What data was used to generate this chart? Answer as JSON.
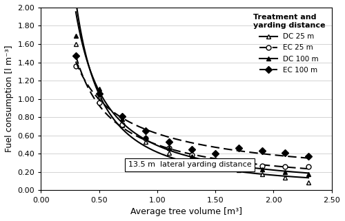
{
  "title": "",
  "xlabel": "Average tree volume [m³]",
  "ylabel": "Fuel consumption [l m⁻³]",
  "xlim": [
    0.0,
    2.5
  ],
  "ylim": [
    0.0,
    2.0
  ],
  "xticks": [
    0.0,
    0.5,
    1.0,
    1.5,
    2.0,
    2.5
  ],
  "yticks": [
    0.0,
    0.2,
    0.4,
    0.6,
    0.8,
    1.0,
    1.2,
    1.4,
    1.6,
    1.8,
    2.0
  ],
  "annotation": "13.5 m  lateral yarding distance",
  "legend_title": "Treatment and\nyarding distance",
  "series": [
    {
      "label": "DC 25 m",
      "linestyle": "-",
      "marker": "^",
      "markerfacecolor": "white",
      "color": "black",
      "linewidth": 1.5,
      "x": [
        0.3,
        0.4,
        0.5,
        0.6,
        0.7,
        0.8,
        0.9,
        1.0,
        1.1,
        1.2,
        1.3,
        1.4,
        1.5,
        1.6,
        1.7,
        1.8,
        1.9,
        2.0,
        2.1,
        2.2,
        2.3
      ],
      "y": [
        1.6,
        1.28,
        1.03,
        0.85,
        0.71,
        0.61,
        0.53,
        0.46,
        0.41,
        0.37,
        0.33,
        0.3,
        0.27,
        0.24,
        0.22,
        0.2,
        0.18,
        0.16,
        0.14,
        0.12,
        0.09
      ]
    },
    {
      "label": "EC 25 m",
      "linestyle": "--",
      "dashes": [
        6,
        3
      ],
      "marker": "o",
      "markerfacecolor": "white",
      "color": "black",
      "linewidth": 1.5,
      "x": [
        0.3,
        0.4,
        0.5,
        0.6,
        0.7,
        0.8,
        0.9,
        1.0,
        1.1,
        1.2,
        1.3,
        1.4,
        1.5,
        1.6,
        1.7,
        1.8,
        1.9,
        2.0,
        2.1,
        2.2,
        2.3
      ],
      "y": [
        1.36,
        1.13,
        0.96,
        0.83,
        0.72,
        0.64,
        0.57,
        0.51,
        0.46,
        0.42,
        0.39,
        0.36,
        0.33,
        0.31,
        0.29,
        0.28,
        0.27,
        0.26,
        0.26,
        0.26,
        0.26
      ]
    },
    {
      "label": "DC 100 m",
      "linestyle": "-",
      "marker": "^",
      "markerfacecolor": "black",
      "color": "black",
      "linewidth": 1.5,
      "x": [
        0.3,
        0.4,
        0.5,
        0.6,
        0.7,
        0.8,
        0.9,
        1.0,
        1.1,
        1.2,
        1.3,
        1.4,
        1.5,
        1.6,
        1.7,
        1.8,
        1.9,
        2.0,
        2.1,
        2.2,
        2.3
      ],
      "y": [
        1.69,
        1.36,
        1.11,
        0.92,
        0.78,
        0.67,
        0.58,
        0.51,
        0.46,
        0.41,
        0.37,
        0.34,
        0.31,
        0.29,
        0.27,
        0.25,
        0.23,
        0.21,
        0.2,
        0.19,
        0.18
      ]
    },
    {
      "label": "EC 100 m",
      "linestyle": "--",
      "dashes": [
        6,
        3
      ],
      "marker": "D",
      "markerfacecolor": "black",
      "color": "black",
      "linewidth": 1.5,
      "x": [
        0.3,
        0.4,
        0.5,
        0.6,
        0.7,
        0.8,
        0.9,
        1.0,
        1.1,
        1.2,
        1.3,
        1.4,
        1.5,
        1.6,
        1.7,
        1.8,
        1.9,
        2.0,
        2.1,
        2.2,
        2.3
      ],
      "y": [
        1.47,
        1.23,
        1.06,
        0.92,
        0.81,
        0.72,
        0.65,
        0.58,
        0.53,
        0.49,
        0.45,
        0.42,
        0.4,
        0.47,
        0.46,
        0.44,
        0.43,
        0.42,
        0.41,
        0.4,
        0.37
      ]
    }
  ]
}
